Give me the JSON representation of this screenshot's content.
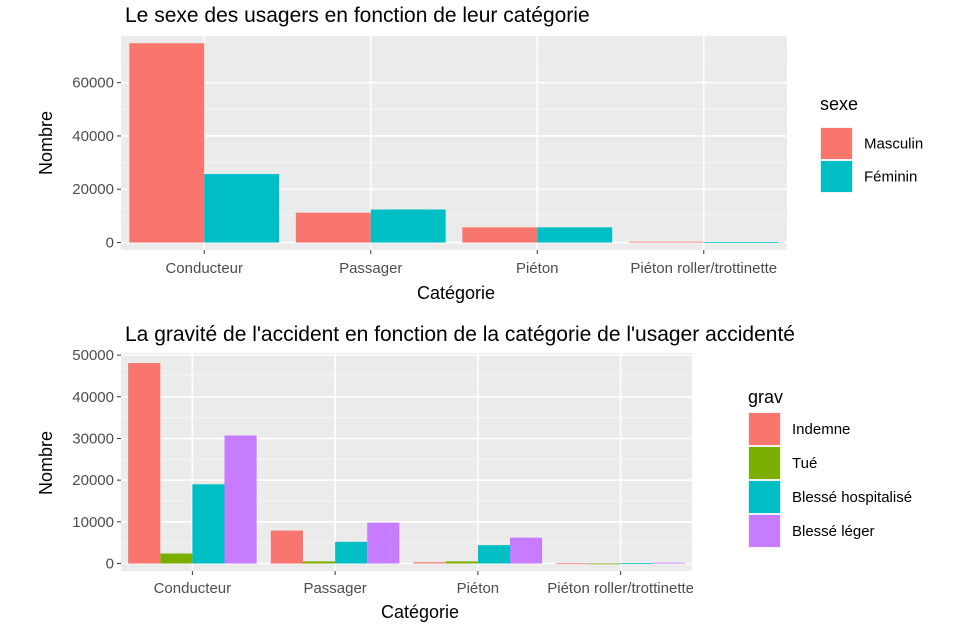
{
  "chart_data": [
    {
      "type": "bar",
      "title": "Le sexe des usagers en fonction de leur catégorie",
      "xlabel": "Catégorie",
      "ylabel": "Nombre",
      "categories": [
        "Conducteur",
        "Passager",
        "Piéton",
        "Piéton roller/trottinette"
      ],
      "series": [
        {
          "name": "Masculin",
          "color": "#F8766D",
          "values": [
            74800,
            11200,
            5700,
            300
          ]
        },
        {
          "name": "Féminin",
          "color": "#00BFC4",
          "values": [
            25700,
            12400,
            5700,
            150
          ]
        }
      ],
      "ylim": [
        -2800,
        77500
      ],
      "yticks": [
        0,
        20000,
        40000,
        60000
      ],
      "ytick_labels": [
        "0",
        "20000",
        "40000",
        "60000"
      ],
      "legend_title": "sexe",
      "legend_position": "right",
      "grid": true
    },
    {
      "type": "bar",
      "title": "La gravité de l'accident en fonction de la catégorie de l'usager accidenté",
      "xlabel": "Catégorie",
      "ylabel": "Nombre",
      "categories": [
        "Conducteur",
        "Passager",
        "Piéton",
        "Piéton roller/trottinette"
      ],
      "series": [
        {
          "name": "Indemne",
          "color": "#F8766D",
          "values": [
            48100,
            7900,
            300,
            50
          ]
        },
        {
          "name": "Tué",
          "color": "#7CAE00",
          "values": [
            2400,
            500,
            500,
            20
          ]
        },
        {
          "name": "Blessé hospitalisé",
          "color": "#00BFC4",
          "values": [
            19000,
            5200,
            4400,
            100
          ]
        },
        {
          "name": "Blessé léger",
          "color": "#C77CFF",
          "values": [
            30700,
            9800,
            6200,
            200
          ]
        }
      ],
      "ylim": [
        -1800,
        50500
      ],
      "yticks": [
        0,
        10000,
        20000,
        30000,
        40000,
        50000
      ],
      "ytick_labels": [
        "0",
        "10000",
        "20000",
        "30000",
        "40000",
        "50000"
      ],
      "legend_title": "grav",
      "legend_position": "right",
      "grid": true
    }
  ]
}
